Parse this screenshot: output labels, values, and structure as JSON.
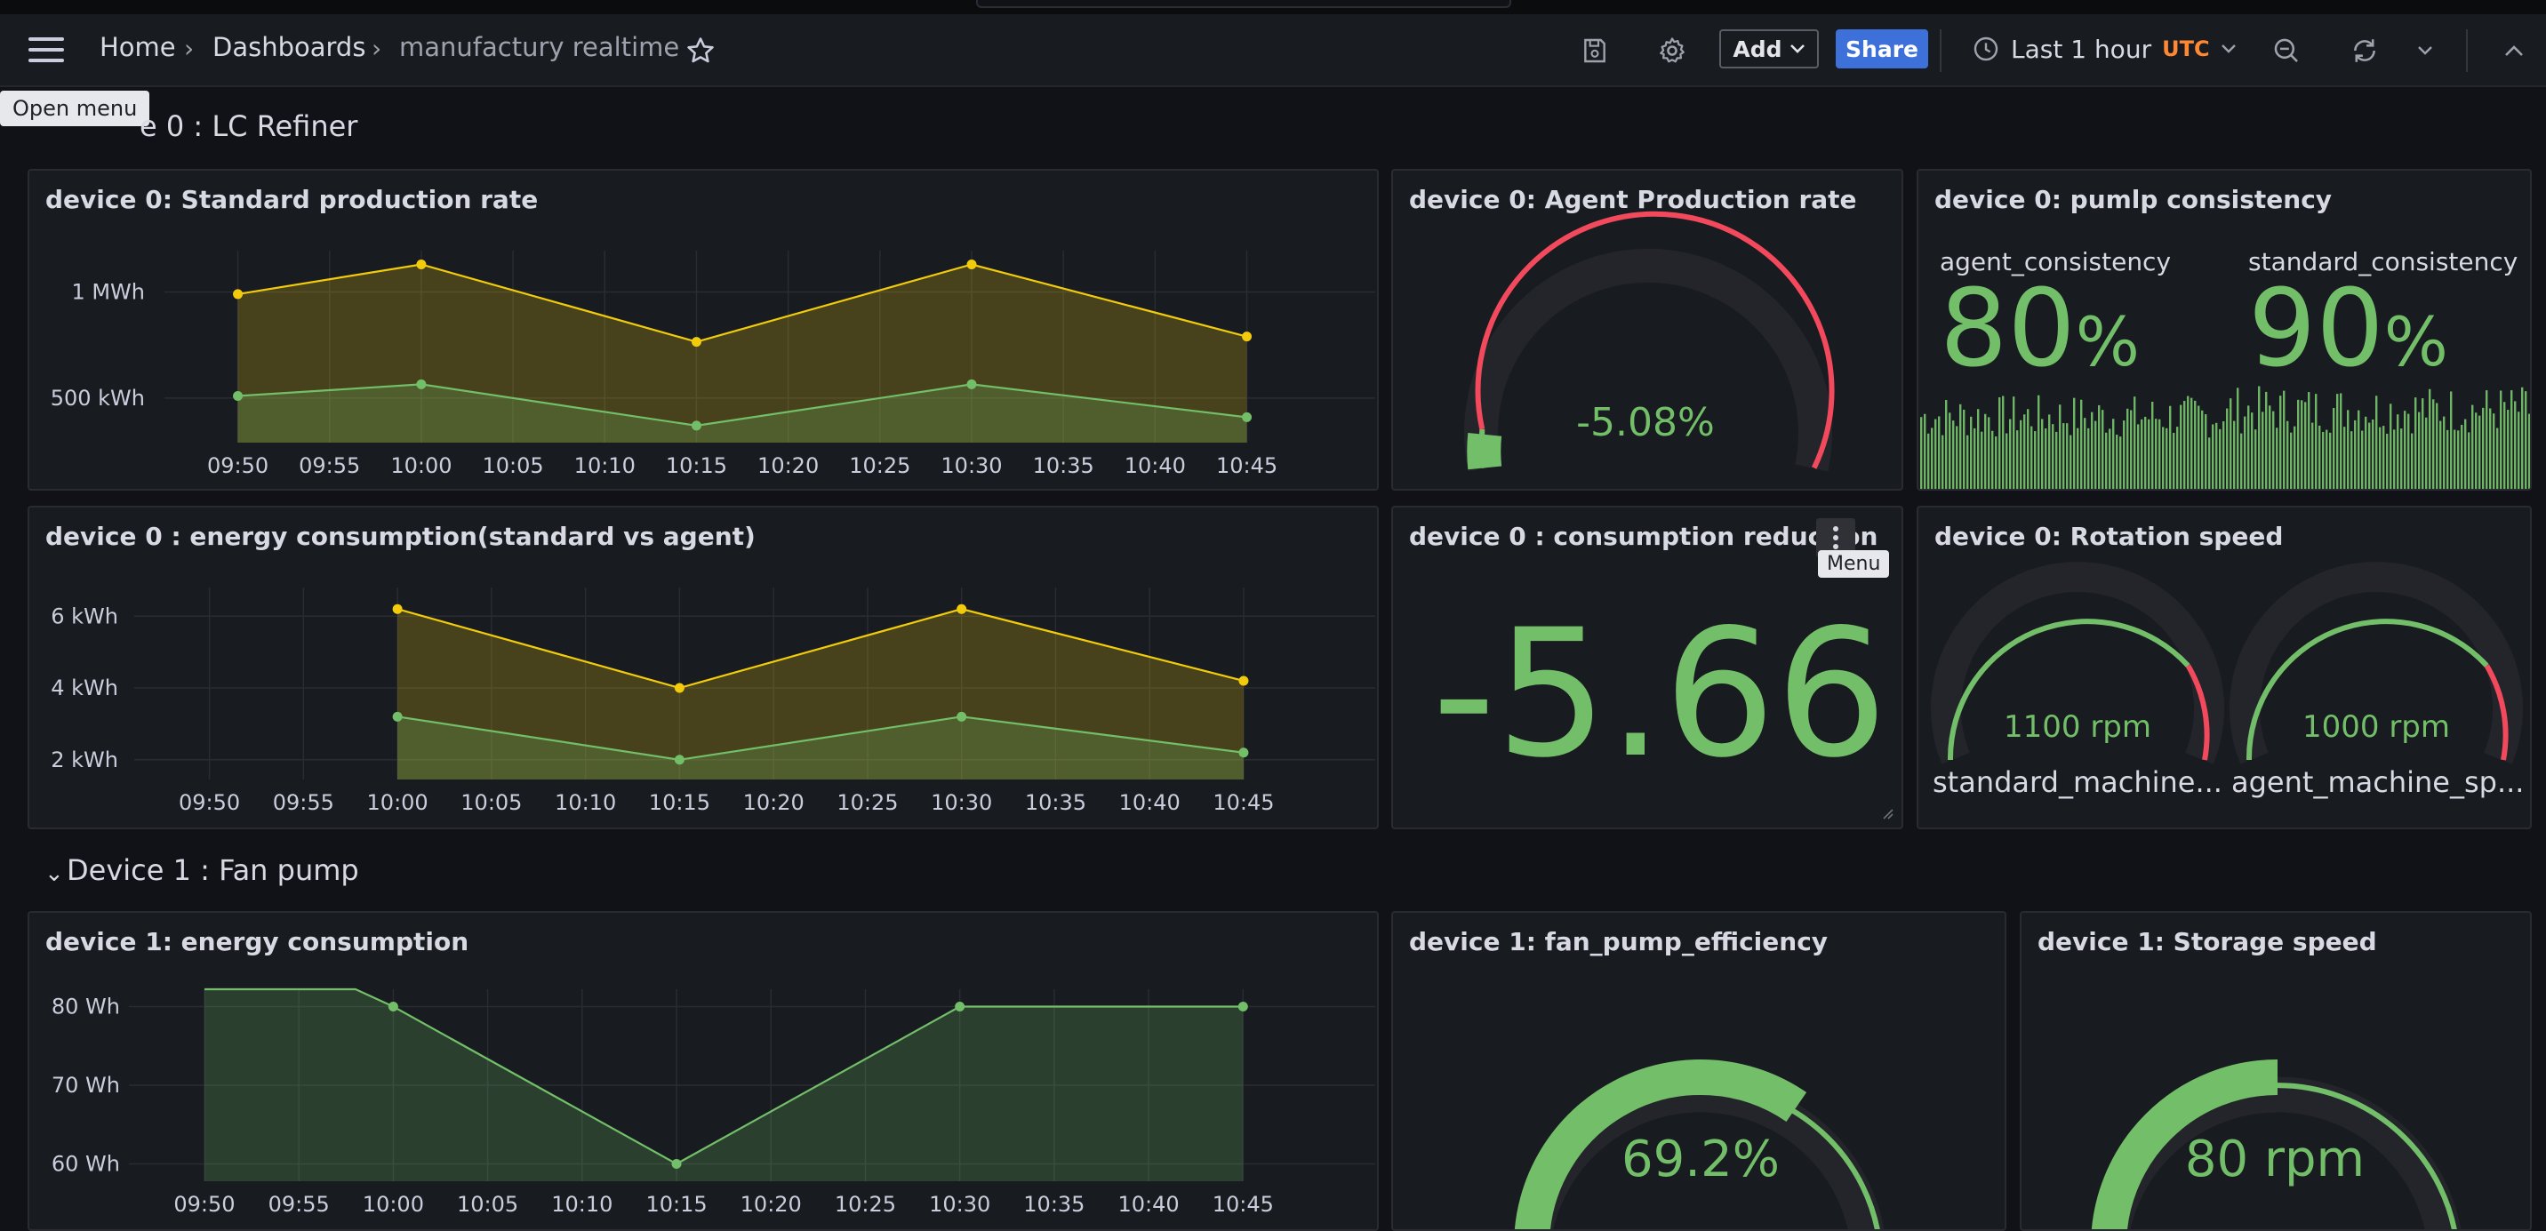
{
  "topbar": {
    "menu_tooltip": "Open menu",
    "breadcrumb": [
      "Home",
      "Dashboards",
      "manufactury realtime"
    ],
    "breadcrumb_sep": "›",
    "add_label": "Add",
    "share_label": "Share",
    "time_range": "Last 1 hour",
    "timezone": "UTC",
    "icons": [
      "menu-icon",
      "star-icon",
      "save-icon",
      "gear-icon",
      "chevron-down-icon",
      "clock-icon",
      "zoom-out-icon",
      "refresh-icon",
      "chevron-up-icon"
    ]
  },
  "rows": [
    {
      "title": "Device 0 : LC Refiner",
      "title_visible": "e 0 : LC Refiner"
    },
    {
      "title": "Device 1 : Fan pump",
      "chevron": "⌄"
    }
  ],
  "colors": {
    "yellow": "#f2cc0c",
    "green": "#73bf69",
    "red": "#f2495c",
    "blue": "#3d71d9",
    "orange": "#ff8833"
  },
  "panels": {
    "p1": {
      "title": "device 0: Standard production rate"
    },
    "p2": {
      "title": "device 0: Agent Production rate",
      "value": "-5.08%"
    },
    "p3": {
      "title": "device 0: pumlp consistency",
      "stats": [
        {
          "label": "agent_consistency",
          "value": "80",
          "unit": "%"
        },
        {
          "label": "standard_consistency",
          "value": "90",
          "unit": "%"
        }
      ]
    },
    "p4": {
      "title": "device 0 : energy consumption(standard vs agent)"
    },
    "p5": {
      "title": "device 0 : consumption reduction",
      "value": "-5.66",
      "menu_tooltip": "Menu"
    },
    "p6": {
      "title": "device 0: Rotation speed",
      "gauges": [
        {
          "value": "1100 rpm",
          "label": "standard_machine..."
        },
        {
          "value": "1000 rpm",
          "label": "agent_machine_sp..."
        }
      ]
    },
    "p7": {
      "title": "device 1: energy consumption"
    },
    "p8": {
      "title": "device 1: fan_pump_efficiency",
      "value": "69.2%",
      "fraction": 0.692
    },
    "p9": {
      "title": "device 1: Storage speed",
      "value": "80 rpm",
      "fraction": 0.5
    }
  },
  "chart_data": [
    {
      "type": "area",
      "panel": "device 0: Standard production rate",
      "x": [
        "09:50",
        "09:55",
        "10:00",
        "10:05",
        "10:10",
        "10:15",
        "10:20",
        "10:25",
        "10:30",
        "10:35",
        "10:40",
        "10:45"
      ],
      "ticks_y": [
        "500 kWh",
        "1 MWh"
      ],
      "yticks": [
        500,
        1000
      ],
      "ylim": [
        290,
        1195
      ],
      "series": [
        {
          "color": "#f2cc0c",
          "points": [
            [
              "09:50",
              990
            ],
            [
              "10:00",
              1130
            ],
            [
              "10:15",
              765
            ],
            [
              "10:30",
              1130
            ],
            [
              "10:45",
              790
            ]
          ]
        },
        {
          "color": "#73bf69",
          "points": [
            [
              "09:50",
              510
            ],
            [
              "10:00",
              565
            ],
            [
              "10:15",
              370
            ],
            [
              "10:30",
              565
            ],
            [
              "10:45",
              410
            ]
          ]
        }
      ]
    },
    {
      "type": "area",
      "panel": "device 0 : energy consumption(standard vs agent)",
      "x": [
        "09:50",
        "09:55",
        "10:00",
        "10:05",
        "10:10",
        "10:15",
        "10:20",
        "10:25",
        "10:30",
        "10:35",
        "10:40",
        "10:45"
      ],
      "ticks_y": [
        "2 kWh",
        "4 kWh",
        "6 kWh"
      ],
      "yticks": [
        2,
        4,
        6
      ],
      "ylim": [
        1.45,
        6.8
      ],
      "series": [
        {
          "color": "#f2cc0c",
          "points": [
            [
              "10:00",
              6.2
            ],
            [
              "10:15",
              4.0
            ],
            [
              "10:30",
              6.2
            ],
            [
              "10:45",
              4.2
            ]
          ]
        },
        {
          "color": "#73bf69",
          "points": [
            [
              "10:00",
              3.2
            ],
            [
              "10:15",
              2.0
            ],
            [
              "10:30",
              3.2
            ],
            [
              "10:45",
              2.2
            ]
          ]
        }
      ]
    },
    {
      "type": "area",
      "panel": "device 1: energy consumption",
      "x": [
        "09:50",
        "09:55",
        "10:00",
        "10:05",
        "10:10",
        "10:15",
        "10:20",
        "10:25",
        "10:30",
        "10:35",
        "10:40",
        "10:45"
      ],
      "ticks_y": [
        "60 Wh",
        "70 Wh",
        "80 Wh"
      ],
      "yticks": [
        60,
        70,
        80
      ],
      "ylim": [
        57.8,
        82.2
      ],
      "series": [
        {
          "color": "#73bf69",
          "points": [
            [
              "09:50",
              82.2
            ],
            [
              "09:58",
              82.2
            ],
            [
              "10:00",
              80
            ],
            [
              "10:15",
              60
            ],
            [
              "10:30",
              80
            ],
            [
              "10:45",
              80
            ]
          ]
        }
      ]
    }
  ]
}
